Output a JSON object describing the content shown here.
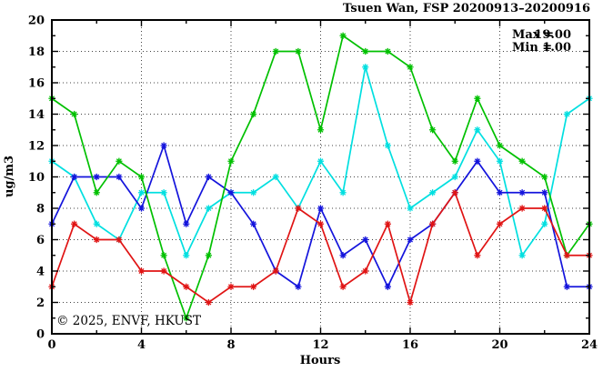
{
  "header": {
    "title": "Tsuen Wan, FSP 20200913–20200916"
  },
  "annotations": {
    "items": [
      {
        "label": "Max =",
        "value": "19.00"
      },
      {
        "label": "Min =",
        "value": "1.00"
      }
    ]
  },
  "watermark": {
    "text": "© 2025, ENVF, HKUST",
    "color": "#dcdcdc"
  },
  "colors": {
    "axis": "#000000",
    "grid": "#444444",
    "background": "#ffffff"
  },
  "chart_data": {
    "type": "line",
    "title": "Tsuen Wan, FSP 20200913–20200916",
    "xlabel": "Hours",
    "ylabel": "ug/m3",
    "xlim": [
      0,
      24
    ],
    "ylim": [
      0,
      20
    ],
    "x_major_ticks": [
      0,
      4,
      8,
      12,
      16,
      20,
      24
    ],
    "x_minor_ticks": [
      2,
      6,
      10,
      14,
      18,
      22
    ],
    "y_major_ticks": [
      0,
      2,
      4,
      6,
      8,
      10,
      12,
      14,
      16,
      18,
      20
    ],
    "y_minor_ticks": [
      1,
      3,
      5,
      7,
      9,
      11,
      13,
      15,
      17,
      19
    ],
    "x_gridlines": [
      4,
      8,
      12,
      16,
      20
    ],
    "y_gridlines": [
      2,
      4,
      6,
      8,
      10,
      12,
      14,
      16,
      18
    ],
    "grid": true,
    "legend": "none",
    "marker": "asterisk",
    "x": [
      0,
      1,
      2,
      3,
      4,
      5,
      6,
      7,
      8,
      9,
      10,
      11,
      12,
      13,
      14,
      15,
      16,
      17,
      18,
      19,
      20,
      21,
      22,
      23,
      24
    ],
    "series": [
      {
        "name": "series-cyan",
        "color": "#00dfe0",
        "values": [
          11,
          10,
          7,
          6,
          9,
          9,
          5,
          8,
          9,
          9,
          10,
          8,
          11,
          9,
          17,
          12,
          8,
          9,
          10,
          13,
          11,
          5,
          7,
          14,
          15
        ]
      },
      {
        "name": "series-blue",
        "color": "#1414dc",
        "values": [
          7,
          10,
          10,
          10,
          8,
          12,
          7,
          10,
          9,
          7,
          4,
          3,
          8,
          5,
          6,
          3,
          6,
          7,
          9,
          11,
          9,
          9,
          9,
          3,
          3
        ]
      },
      {
        "name": "series-green",
        "color": "#00c000",
        "values": [
          15,
          14,
          9,
          11,
          10,
          5,
          1,
          5,
          11,
          14,
          18,
          18,
          13,
          19,
          18,
          18,
          17,
          13,
          11,
          15,
          12,
          11,
          10,
          5,
          7
        ]
      },
      {
        "name": "series-red",
        "color": "#e01414",
        "values": [
          3,
          7,
          6,
          6,
          4,
          4,
          3,
          2,
          3,
          3,
          4,
          8,
          7,
          3,
          4,
          7,
          2,
          7,
          9,
          5,
          7,
          8,
          8,
          5,
          5
        ]
      }
    ],
    "max": "19.00",
    "min": "1.00"
  }
}
